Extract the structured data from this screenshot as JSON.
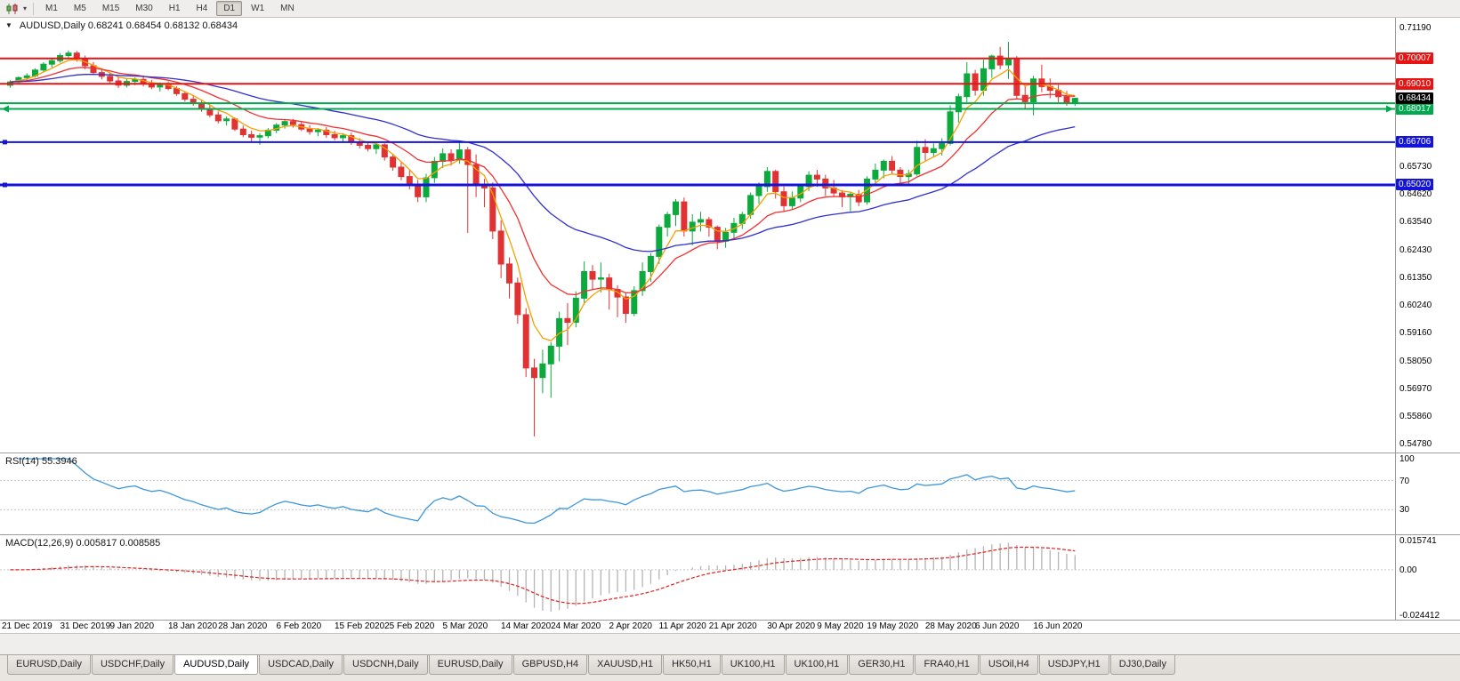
{
  "toolbar": {
    "timeframes": [
      "M1",
      "M5",
      "M15",
      "M30",
      "H1",
      "H4",
      "D1",
      "W1",
      "MN"
    ],
    "active_timeframe": "D1",
    "chart_type_icon": "candlestick-chart-icon",
    "dropdown_icon": "chevron-down-icon"
  },
  "chart_data": [
    {
      "name": "price",
      "type": "candlestick",
      "symbol": "AUDUSD",
      "timeframe": "Daily",
      "title": "AUDUSD,Daily 0.68241 0.68454 0.68132 0.68434",
      "ohlc_display": {
        "open": "0.68241",
        "high": "0.68454",
        "low": "0.68132",
        "close": "0.68434"
      },
      "ylim": [
        0.5478,
        0.7119
      ],
      "bull_color": "#0caa3c",
      "bear_color": "#e03232",
      "y_axis_labels": [
        "0.71190",
        "0.65730",
        "0.64620",
        "0.63540",
        "0.62430",
        "0.61350",
        "0.60240",
        "0.59160",
        "0.58050",
        "0.56970",
        "0.55860",
        "0.54780"
      ],
      "hlines": [
        {
          "price": 0.70007,
          "color": "#e81414",
          "width": 2,
          "badge": "0.70007"
        },
        {
          "price": 0.6901,
          "color": "#e81414",
          "width": 2,
          "badge": "0.69010"
        },
        {
          "price": 0.6824,
          "color": "#00a84e",
          "width": 2,
          "badge": null
        },
        {
          "price": 0.68017,
          "color": "#00a84e",
          "width": 2,
          "badge": "0.68017",
          "end_arrows": true
        },
        {
          "price": 0.66706,
          "color": "#1414d8",
          "width": 2,
          "badge": "0.66706",
          "left_handle": true
        },
        {
          "price": 0.6502,
          "color": "#1414d8",
          "width": 3,
          "badge": "0.65020",
          "left_handle": true
        }
      ],
      "current_price_badge": {
        "label": "0.68434",
        "price": 0.68434,
        "color": "#000000"
      },
      "moving_averages": [
        {
          "type": "EMA",
          "period": 5,
          "color": "#f5a000"
        },
        {
          "type": "EMA",
          "period": 13,
          "color": "#f03030"
        },
        {
          "type": "EMA",
          "period": 34,
          "color": "#3030cc"
        }
      ],
      "x_axis_dates": [
        {
          "label": "21 Dec 2019",
          "i": 0
        },
        {
          "label": "31 Dec 2019",
          "i": 7
        },
        {
          "label": "9 Jan 2020",
          "i": 13
        },
        {
          "label": "18 Jan 2020",
          "i": 20
        },
        {
          "label": "28 Jan 2020",
          "i": 26
        },
        {
          "label": "6 Feb 2020",
          "i": 33
        },
        {
          "label": "15 Feb 2020",
          "i": 40
        },
        {
          "label": "25 Feb 2020",
          "i": 46
        },
        {
          "label": "5 Mar 2020",
          "i": 53
        },
        {
          "label": "14 Mar 2020",
          "i": 60
        },
        {
          "label": "24 Mar 2020",
          "i": 66
        },
        {
          "label": "2 Apr 2020",
          "i": 73
        },
        {
          "label": "11 Apr 2020",
          "i": 79
        },
        {
          "label": "21 Apr 2020",
          "i": 85
        },
        {
          "label": "30 Apr 2020",
          "i": 92
        },
        {
          "label": "9 May 2020",
          "i": 98
        },
        {
          "label": "19 May 2020",
          "i": 104
        },
        {
          "label": "28 May 2020",
          "i": 111
        },
        {
          "label": "6 Jun 2020",
          "i": 117
        },
        {
          "label": "16 Jun 2020",
          "i": 124
        }
      ],
      "candles": [
        [
          0.6895,
          0.6915,
          0.6885,
          0.6908
        ],
        [
          0.6908,
          0.693,
          0.6898,
          0.6925
        ],
        [
          0.6925,
          0.6942,
          0.6912,
          0.6932
        ],
        [
          0.6932,
          0.6962,
          0.6925,
          0.6955
        ],
        [
          0.6955,
          0.6986,
          0.6948,
          0.6978
        ],
        [
          0.6978,
          0.7002,
          0.6965,
          0.6992
        ],
        [
          0.6992,
          0.7022,
          0.6984,
          0.7012
        ],
        [
          0.7012,
          0.7032,
          0.6998,
          0.7022
        ],
        [
          0.7022,
          0.703,
          0.6988,
          0.7
        ],
        [
          0.7,
          0.7012,
          0.6958,
          0.6972
        ],
        [
          0.6972,
          0.6986,
          0.6935,
          0.6945
        ],
        [
          0.6945,
          0.6962,
          0.6918,
          0.693
        ],
        [
          0.693,
          0.6946,
          0.69,
          0.6912
        ],
        [
          0.6912,
          0.6926,
          0.6884,
          0.6895
        ],
        [
          0.6895,
          0.6922,
          0.6886,
          0.691
        ],
        [
          0.691,
          0.6926,
          0.6895,
          0.6918
        ],
        [
          0.6918,
          0.693,
          0.689,
          0.69
        ],
        [
          0.69,
          0.6916,
          0.688,
          0.6888
        ],
        [
          0.6888,
          0.6906,
          0.687,
          0.6896
        ],
        [
          0.6896,
          0.691,
          0.6875,
          0.6882
        ],
        [
          0.6882,
          0.689,
          0.6854,
          0.6862
        ],
        [
          0.6862,
          0.6872,
          0.683,
          0.684
        ],
        [
          0.684,
          0.6856,
          0.6814,
          0.6825
        ],
        [
          0.6825,
          0.6834,
          0.679,
          0.68
        ],
        [
          0.68,
          0.6816,
          0.6768,
          0.6778
        ],
        [
          0.6778,
          0.6792,
          0.6744,
          0.6755
        ],
        [
          0.6755,
          0.6772,
          0.6736,
          0.6762
        ],
        [
          0.6762,
          0.6768,
          0.6714,
          0.6722
        ],
        [
          0.6722,
          0.6736,
          0.669,
          0.67
        ],
        [
          0.67,
          0.6716,
          0.6668,
          0.669
        ],
        [
          0.669,
          0.6706,
          0.666,
          0.6696
        ],
        [
          0.6696,
          0.6726,
          0.6686,
          0.6718
        ],
        [
          0.6718,
          0.6746,
          0.6706,
          0.6738
        ],
        [
          0.6738,
          0.6762,
          0.6724,
          0.6752
        ],
        [
          0.6752,
          0.6762,
          0.6728,
          0.674
        ],
        [
          0.674,
          0.6752,
          0.6714,
          0.6722
        ],
        [
          0.6722,
          0.6738,
          0.67,
          0.6712
        ],
        [
          0.6712,
          0.6726,
          0.6694,
          0.6718
        ],
        [
          0.6718,
          0.673,
          0.6688,
          0.67
        ],
        [
          0.67,
          0.6715,
          0.6678,
          0.6688
        ],
        [
          0.6688,
          0.6706,
          0.667,
          0.6696
        ],
        [
          0.6696,
          0.6708,
          0.666,
          0.667
        ],
        [
          0.667,
          0.6686,
          0.6646,
          0.6658
        ],
        [
          0.6658,
          0.6672,
          0.6634,
          0.6645
        ],
        [
          0.6645,
          0.6666,
          0.6624,
          0.666
        ],
        [
          0.666,
          0.6666,
          0.6598,
          0.6612
        ],
        [
          0.6612,
          0.6624,
          0.6558,
          0.6572
        ],
        [
          0.6572,
          0.6592,
          0.652,
          0.6535
        ],
        [
          0.6535,
          0.656,
          0.6484,
          0.65
        ],
        [
          0.65,
          0.6522,
          0.6434,
          0.6455
        ],
        [
          0.6455,
          0.6546,
          0.6434,
          0.653
        ],
        [
          0.653,
          0.6612,
          0.651,
          0.6595
        ],
        [
          0.6595,
          0.6646,
          0.6568,
          0.6625
        ],
        [
          0.6625,
          0.6642,
          0.6578,
          0.66
        ],
        [
          0.66,
          0.6672,
          0.6585,
          0.664
        ],
        [
          0.664,
          0.6652,
          0.6313,
          0.6582
        ],
        [
          0.6582,
          0.6622,
          0.6454,
          0.65
        ],
        [
          0.65,
          0.6526,
          0.6414,
          0.649
        ],
        [
          0.649,
          0.6512,
          0.6288,
          0.632
        ],
        [
          0.632,
          0.6362,
          0.6134,
          0.619
        ],
        [
          0.619,
          0.6216,
          0.6054,
          0.6115
        ],
        [
          0.6115,
          0.6136,
          0.5954,
          0.599
        ],
        [
          0.599,
          0.6016,
          0.5744,
          0.578
        ],
        [
          0.578,
          0.5816,
          0.551,
          0.5742
        ],
        [
          0.5742,
          0.5852,
          0.568,
          0.5796
        ],
        [
          0.5796,
          0.5882,
          0.5662,
          0.5866
        ],
        [
          0.5866,
          0.6002,
          0.5806,
          0.5975
        ],
        [
          0.5975,
          0.6036,
          0.587,
          0.596
        ],
        [
          0.596,
          0.6082,
          0.594,
          0.6055
        ],
        [
          0.6055,
          0.62,
          0.603,
          0.616
        ],
        [
          0.616,
          0.6186,
          0.6088,
          0.613
        ],
        [
          0.613,
          0.6196,
          0.6078,
          0.6135
        ],
        [
          0.6135,
          0.6152,
          0.601,
          0.609
        ],
        [
          0.609,
          0.6106,
          0.598,
          0.606
        ],
        [
          0.606,
          0.6076,
          0.5958,
          0.5995
        ],
        [
          0.5995,
          0.6102,
          0.5984,
          0.6085
        ],
        [
          0.6085,
          0.6196,
          0.6064,
          0.616
        ],
        [
          0.616,
          0.6232,
          0.612,
          0.622
        ],
        [
          0.622,
          0.6346,
          0.619,
          0.6335
        ],
        [
          0.6335,
          0.6396,
          0.6298,
          0.6385
        ],
        [
          0.6385,
          0.6446,
          0.634,
          0.6435
        ],
        [
          0.6435,
          0.6452,
          0.6298,
          0.632
        ],
        [
          0.632,
          0.6386,
          0.6264,
          0.6355
        ],
        [
          0.6355,
          0.6396,
          0.6318,
          0.6365
        ],
        [
          0.6365,
          0.6376,
          0.6298,
          0.6335
        ],
        [
          0.6335,
          0.6342,
          0.6248,
          0.628
        ],
        [
          0.628,
          0.6332,
          0.6254,
          0.6315
        ],
        [
          0.6315,
          0.6372,
          0.6288,
          0.635
        ],
        [
          0.635,
          0.6396,
          0.6328,
          0.6385
        ],
        [
          0.6385,
          0.6472,
          0.6368,
          0.646
        ],
        [
          0.646,
          0.6512,
          0.6428,
          0.6495
        ],
        [
          0.6495,
          0.6572,
          0.6474,
          0.6555
        ],
        [
          0.6555,
          0.6562,
          0.6448,
          0.6475
        ],
        [
          0.6475,
          0.6496,
          0.6398,
          0.642
        ],
        [
          0.642,
          0.6476,
          0.6404,
          0.645
        ],
        [
          0.645,
          0.6506,
          0.6434,
          0.6495
        ],
        [
          0.6495,
          0.6556,
          0.6478,
          0.654
        ],
        [
          0.654,
          0.6562,
          0.6494,
          0.6525
        ],
        [
          0.6525,
          0.6542,
          0.6458,
          0.649
        ],
        [
          0.649,
          0.6522,
          0.6454,
          0.647
        ],
        [
          0.647,
          0.6482,
          0.6414,
          0.6455
        ],
        [
          0.6455,
          0.6476,
          0.6398,
          0.6465
        ],
        [
          0.6465,
          0.6482,
          0.6418,
          0.6435
        ],
        [
          0.6435,
          0.6536,
          0.6424,
          0.6525
        ],
        [
          0.6525,
          0.6586,
          0.6504,
          0.656
        ],
        [
          0.656,
          0.6602,
          0.6528,
          0.6595
        ],
        [
          0.6595,
          0.6616,
          0.6544,
          0.656
        ],
        [
          0.656,
          0.6572,
          0.6504,
          0.6535
        ],
        [
          0.6535,
          0.6562,
          0.6498,
          0.6545
        ],
        [
          0.6545,
          0.6676,
          0.6538,
          0.665
        ],
        [
          0.665,
          0.6682,
          0.6598,
          0.663
        ],
        [
          0.663,
          0.6666,
          0.6614,
          0.6645
        ],
        [
          0.6645,
          0.6686,
          0.6618,
          0.6665
        ],
        [
          0.6665,
          0.6816,
          0.6658,
          0.679
        ],
        [
          0.679,
          0.6862,
          0.6748,
          0.685
        ],
        [
          0.685,
          0.6986,
          0.6828,
          0.694
        ],
        [
          0.694,
          0.6956,
          0.6854,
          0.6875
        ],
        [
          0.6875,
          0.6996,
          0.6854,
          0.696
        ],
        [
          0.696,
          0.7016,
          0.6924,
          0.701
        ],
        [
          0.701,
          0.7046,
          0.6958,
          0.6975
        ],
        [
          0.6975,
          0.7066,
          0.692,
          0.7
        ],
        [
          0.7,
          0.701,
          0.6838,
          0.6855
        ],
        [
          0.6855,
          0.6892,
          0.6798,
          0.683
        ],
        [
          0.683,
          0.6932,
          0.6776,
          0.692
        ],
        [
          0.692,
          0.6976,
          0.6868,
          0.689
        ],
        [
          0.689,
          0.6922,
          0.6844,
          0.6875
        ],
        [
          0.6875,
          0.6896,
          0.6828,
          0.685
        ],
        [
          0.685,
          0.6872,
          0.6814,
          0.6824
        ],
        [
          0.68241,
          0.68454,
          0.68132,
          0.68434
        ]
      ]
    },
    {
      "name": "rsi",
      "type": "line",
      "indicator": "RSI",
      "title": "RSI(14) 55.3946",
      "period": 14,
      "current_value": "55.3946",
      "levels": [
        100,
        70,
        30
      ],
      "range": [
        0,
        100
      ],
      "color": "#3c96dc"
    },
    {
      "name": "macd",
      "type": "histogram",
      "indicator": "MACD",
      "title": "MACD(12,26,9) 0.005817 0.008585",
      "fast_period": 12,
      "slow_period": 26,
      "signal_period": 9,
      "main_value": "0.005817",
      "signal_value": "0.008585",
      "range": [
        -0.024412,
        0.015741
      ],
      "axis_labels": [
        "0.015741",
        "0.00",
        "-0.024412"
      ],
      "histogram_color": "#b4b4b4",
      "signal_color": "#e02020"
    }
  ],
  "tabs": {
    "items": [
      "EURUSD,Daily",
      "USDCHF,Daily",
      "AUDUSD,Daily",
      "USDCAD,Daily",
      "USDCNH,Daily",
      "EURUSD,Daily",
      "GBPUSD,H4",
      "XAUUSD,H1",
      "HK50,H1",
      "UK100,H1",
      "UK100,H1",
      "GER30,H1",
      "FRA40,H1",
      "USOil,H4",
      "USDJPY,H1",
      "DJ30,Daily"
    ],
    "active_index": 2
  }
}
